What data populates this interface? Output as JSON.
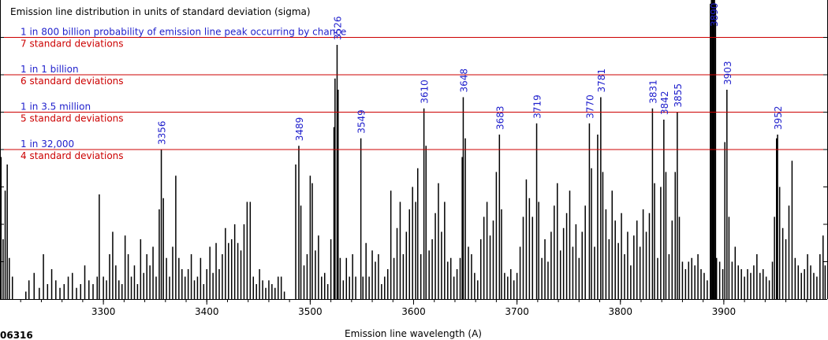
{
  "chart_data": {
    "type": "bar",
    "title": "Emission line distribution in units of standard deviation (sigma)",
    "xlabel": "Emission line wavelength (A)",
    "ylabel": "",
    "figure_id": "06316",
    "xlim": [
      3200,
      4000
    ],
    "ylim": [
      0,
      8
    ],
    "x_ticks": [
      3300,
      3400,
      3500,
      3600,
      3700,
      3800,
      3900
    ],
    "grid": false,
    "colors": {
      "bars": "#000000",
      "threshold_lines": "#cc0000",
      "probability_text": "#1f1fcc",
      "sigma_text": "#cc0000",
      "peak_labels": "#1f1fcc"
    },
    "thresholds": [
      {
        "sigma": 7,
        "probability": "1 in 800 billion probability of emission line peak occurring by chance",
        "sigma_label": "7 standard deviations"
      },
      {
        "sigma": 6,
        "probability": "1 in 1 billion",
        "sigma_label": "6 standard deviations"
      },
      {
        "sigma": 5,
        "probability": "1 in 3.5 million",
        "sigma_label": "5 standard deviations"
      },
      {
        "sigma": 4,
        "probability": "1 in 32,000",
        "sigma_label": "4 standard deviations"
      }
    ],
    "labeled_peaks": [
      {
        "x": 3356,
        "label": "3356",
        "value": 4.0
      },
      {
        "x": 3489,
        "label": "3489",
        "value": 4.1
      },
      {
        "x": 3526,
        "label": "3526",
        "value": 6.8
      },
      {
        "x": 3549,
        "label": "3549",
        "value": 4.3
      },
      {
        "x": 3610,
        "label": "3610",
        "value": 5.1
      },
      {
        "x": 3648,
        "label": "3648",
        "value": 5.4
      },
      {
        "x": 3683,
        "label": "3683",
        "value": 4.4
      },
      {
        "x": 3719,
        "label": "3719",
        "value": 4.7
      },
      {
        "x": 3770,
        "label": "3770",
        "value": 4.7
      },
      {
        "x": 3781,
        "label": "3781",
        "value": 5.4
      },
      {
        "x": 3831,
        "label": "3831",
        "value": 5.1
      },
      {
        "x": 3842,
        "label": "3842",
        "value": 4.8
      },
      {
        "x": 3855,
        "label": "3855",
        "value": 5.0
      },
      {
        "x": 3890,
        "label": "3890",
        "value": 8.0
      },
      {
        "x": 3903,
        "label": "3903",
        "value": 5.6
      },
      {
        "x": 3952,
        "label": "3952",
        "value": 4.4
      }
    ],
    "bars": [
      [
        3201,
        3.8
      ],
      [
        3203,
        1.6
      ],
      [
        3205,
        2.9
      ],
      [
        3207,
        3.6
      ],
      [
        3209,
        1.1
      ],
      [
        3212,
        0.6
      ],
      [
        3225,
        0.2
      ],
      [
        3228,
        0.5
      ],
      [
        3233,
        0.7
      ],
      [
        3238,
        0.3
      ],
      [
        3242,
        1.2
      ],
      [
        3246,
        0.4
      ],
      [
        3250,
        0.8
      ],
      [
        3254,
        0.5
      ],
      [
        3258,
        0.3
      ],
      [
        3262,
        0.4
      ],
      [
        3266,
        0.6
      ],
      [
        3270,
        0.7
      ],
      [
        3274,
        0.3
      ],
      [
        3278,
        0.4
      ],
      [
        3282,
        0.9
      ],
      [
        3286,
        0.5
      ],
      [
        3290,
        0.4
      ],
      [
        3294,
        0.6
      ],
      [
        3296,
        2.8
      ],
      [
        3300,
        0.6
      ],
      [
        3303,
        0.5
      ],
      [
        3306,
        1.2
      ],
      [
        3309,
        1.8
      ],
      [
        3312,
        0.9
      ],
      [
        3315,
        0.5
      ],
      [
        3318,
        0.4
      ],
      [
        3321,
        1.7
      ],
      [
        3324,
        1.2
      ],
      [
        3327,
        0.6
      ],
      [
        3330,
        0.9
      ],
      [
        3333,
        0.4
      ],
      [
        3336,
        1.6
      ],
      [
        3339,
        0.7
      ],
      [
        3342,
        1.2
      ],
      [
        3345,
        0.9
      ],
      [
        3348,
        1.4
      ],
      [
        3351,
        0.6
      ],
      [
        3354,
        2.4
      ],
      [
        3356,
        4.0
      ],
      [
        3358,
        2.7
      ],
      [
        3361,
        1.1
      ],
      [
        3364,
        0.6
      ],
      [
        3367,
        1.4
      ],
      [
        3370,
        3.3
      ],
      [
        3373,
        1.1
      ],
      [
        3376,
        0.8
      ],
      [
        3379,
        0.6
      ],
      [
        3382,
        0.8
      ],
      [
        3385,
        1.2
      ],
      [
        3388,
        0.5
      ],
      [
        3391,
        0.6
      ],
      [
        3394,
        1.1
      ],
      [
        3397,
        0.4
      ],
      [
        3400,
        0.8
      ],
      [
        3403,
        1.4
      ],
      [
        3406,
        0.7
      ],
      [
        3409,
        1.5
      ],
      [
        3412,
        0.8
      ],
      [
        3415,
        1.2
      ],
      [
        3418,
        1.9
      ],
      [
        3421,
        1.5
      ],
      [
        3424,
        1.6
      ],
      [
        3427,
        2.0
      ],
      [
        3430,
        1.5
      ],
      [
        3433,
        1.3
      ],
      [
        3436,
        2.0
      ],
      [
        3439,
        2.6
      ],
      [
        3442,
        2.6
      ],
      [
        3445,
        0.6
      ],
      [
        3448,
        0.4
      ],
      [
        3451,
        0.8
      ],
      [
        3454,
        0.5
      ],
      [
        3457,
        0.3
      ],
      [
        3460,
        0.5
      ],
      [
        3463,
        0.4
      ],
      [
        3466,
        0.3
      ],
      [
        3469,
        0.6
      ],
      [
        3472,
        0.6
      ],
      [
        3475,
        0.2
      ],
      [
        3486,
        3.6
      ],
      [
        3489,
        4.1
      ],
      [
        3491,
        2.5
      ],
      [
        3494,
        0.9
      ],
      [
        3497,
        1.2
      ],
      [
        3500,
        3.3
      ],
      [
        3502,
        3.1
      ],
      [
        3505,
        1.3
      ],
      [
        3508,
        1.7
      ],
      [
        3511,
        0.6
      ],
      [
        3514,
        0.7
      ],
      [
        3517,
        0.4
      ],
      [
        3520,
        1.6
      ],
      [
        3523,
        4.6
      ],
      [
        3524,
        5.9
      ],
      [
        3526,
        6.8
      ],
      [
        3527,
        5.6
      ],
      [
        3529,
        1.1
      ],
      [
        3532,
        0.5
      ],
      [
        3535,
        1.1
      ],
      [
        3538,
        0.6
      ],
      [
        3541,
        1.2
      ],
      [
        3544,
        0.6
      ],
      [
        3549,
        4.3
      ],
      [
        3551,
        0.6
      ],
      [
        3554,
        1.5
      ],
      [
        3557,
        0.6
      ],
      [
        3560,
        1.3
      ],
      [
        3563,
        1.0
      ],
      [
        3566,
        1.2
      ],
      [
        3569,
        0.4
      ],
      [
        3572,
        0.6
      ],
      [
        3575,
        0.8
      ],
      [
        3578,
        2.9
      ],
      [
        3581,
        1.1
      ],
      [
        3584,
        1.9
      ],
      [
        3587,
        2.6
      ],
      [
        3590,
        1.2
      ],
      [
        3593,
        1.8
      ],
      [
        3596,
        2.4
      ],
      [
        3599,
        3.0
      ],
      [
        3602,
        2.6
      ],
      [
        3604,
        3.5
      ],
      [
        3607,
        1.2
      ],
      [
        3610,
        5.1
      ],
      [
        3612,
        4.1
      ],
      [
        3615,
        1.3
      ],
      [
        3618,
        1.6
      ],
      [
        3621,
        2.3
      ],
      [
        3624,
        3.1
      ],
      [
        3627,
        1.8
      ],
      [
        3630,
        2.6
      ],
      [
        3633,
        1.0
      ],
      [
        3636,
        1.1
      ],
      [
        3639,
        0.6
      ],
      [
        3642,
        0.8
      ],
      [
        3645,
        1.1
      ],
      [
        3647,
        3.8
      ],
      [
        3648,
        5.4
      ],
      [
        3650,
        4.3
      ],
      [
        3653,
        1.4
      ],
      [
        3656,
        1.2
      ],
      [
        3659,
        0.7
      ],
      [
        3662,
        0.5
      ],
      [
        3665,
        1.6
      ],
      [
        3668,
        2.2
      ],
      [
        3671,
        2.6
      ],
      [
        3674,
        1.7
      ],
      [
        3677,
        2.1
      ],
      [
        3680,
        3.4
      ],
      [
        3683,
        4.4
      ],
      [
        3685,
        2.4
      ],
      [
        3688,
        0.7
      ],
      [
        3691,
        0.6
      ],
      [
        3694,
        0.8
      ],
      [
        3697,
        0.5
      ],
      [
        3700,
        0.7
      ],
      [
        3703,
        1.4
      ],
      [
        3706,
        2.2
      ],
      [
        3709,
        3.2
      ],
      [
        3712,
        2.7
      ],
      [
        3715,
        2.2
      ],
      [
        3719,
        4.7
      ],
      [
        3721,
        2.6
      ],
      [
        3724,
        1.1
      ],
      [
        3727,
        1.6
      ],
      [
        3730,
        1.0
      ],
      [
        3733,
        1.8
      ],
      [
        3736,
        2.5
      ],
      [
        3739,
        3.1
      ],
      [
        3742,
        1.3
      ],
      [
        3745,
        1.9
      ],
      [
        3748,
        2.3
      ],
      [
        3751,
        2.9
      ],
      [
        3754,
        1.4
      ],
      [
        3757,
        2.0
      ],
      [
        3760,
        1.1
      ],
      [
        3763,
        1.8
      ],
      [
        3766,
        2.5
      ],
      [
        3770,
        4.7
      ],
      [
        3772,
        3.5
      ],
      [
        3775,
        1.4
      ],
      [
        3778,
        4.4
      ],
      [
        3781,
        5.4
      ],
      [
        3783,
        3.4
      ],
      [
        3786,
        2.4
      ],
      [
        3789,
        1.6
      ],
      [
        3792,
        2.9
      ],
      [
        3795,
        2.1
      ],
      [
        3798,
        1.5
      ],
      [
        3801,
        2.3
      ],
      [
        3804,
        1.2
      ],
      [
        3807,
        1.8
      ],
      [
        3810,
        0.9
      ],
      [
        3813,
        1.7
      ],
      [
        3816,
        2.1
      ],
      [
        3819,
        1.4
      ],
      [
        3822,
        2.4
      ],
      [
        3825,
        1.8
      ],
      [
        3828,
        2.3
      ],
      [
        3831,
        5.1
      ],
      [
        3833,
        3.1
      ],
      [
        3836,
        1.1
      ],
      [
        3839,
        3.0
      ],
      [
        3842,
        4.8
      ],
      [
        3844,
        3.4
      ],
      [
        3847,
        1.2
      ],
      [
        3850,
        2.1
      ],
      [
        3853,
        3.4
      ],
      [
        3855,
        5.0
      ],
      [
        3857,
        2.2
      ],
      [
        3860,
        1.0
      ],
      [
        3863,
        0.8
      ],
      [
        3866,
        1.0
      ],
      [
        3869,
        1.1
      ],
      [
        3872,
        0.9
      ],
      [
        3875,
        1.2
      ],
      [
        3878,
        0.8
      ],
      [
        3881,
        0.7
      ],
      [
        3884,
        0.5
      ],
      [
        3887,
        7.9
      ],
      [
        3888,
        8.0
      ],
      [
        3889,
        8.0
      ],
      [
        3890,
        8.0
      ],
      [
        3891,
        8.0
      ],
      [
        3892,
        7.9
      ],
      [
        3893,
        1.1
      ],
      [
        3896,
        1.0
      ],
      [
        3899,
        0.8
      ],
      [
        3901,
        4.2
      ],
      [
        3903,
        5.6
      ],
      [
        3905,
        2.2
      ],
      [
        3908,
        1.0
      ],
      [
        3911,
        1.4
      ],
      [
        3914,
        0.9
      ],
      [
        3917,
        0.8
      ],
      [
        3920,
        0.6
      ],
      [
        3923,
        0.8
      ],
      [
        3926,
        0.7
      ],
      [
        3929,
        0.9
      ],
      [
        3932,
        1.2
      ],
      [
        3935,
        0.7
      ],
      [
        3938,
        0.8
      ],
      [
        3941,
        0.6
      ],
      [
        3944,
        0.5
      ],
      [
        3947,
        1.0
      ],
      [
        3949,
        2.2
      ],
      [
        3951,
        4.3
      ],
      [
        3952,
        4.4
      ],
      [
        3954,
        3.0
      ],
      [
        3957,
        1.9
      ],
      [
        3960,
        1.6
      ],
      [
        3963,
        2.5
      ],
      [
        3966,
        3.7
      ],
      [
        3969,
        1.1
      ],
      [
        3972,
        0.9
      ],
      [
        3975,
        0.7
      ],
      [
        3978,
        0.8
      ],
      [
        3981,
        1.2
      ],
      [
        3984,
        0.9
      ],
      [
        3987,
        0.7
      ],
      [
        3990,
        0.6
      ],
      [
        3993,
        1.2
      ],
      [
        3996,
        1.7
      ],
      [
        3998,
        0.9
      ]
    ]
  }
}
